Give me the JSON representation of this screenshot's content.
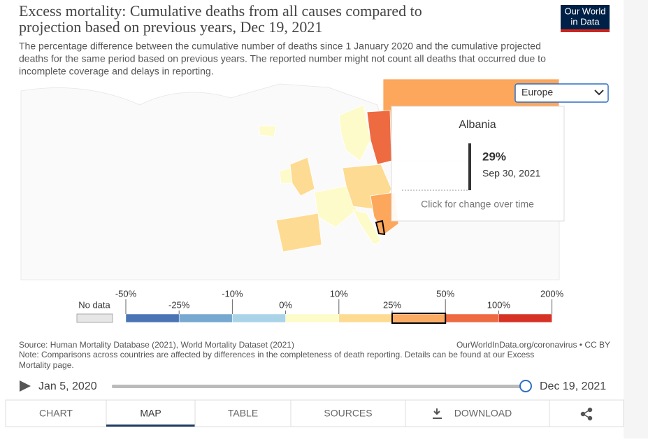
{
  "header": {
    "title_lines": [
      "Excess mortality: Cumulative deaths from all causes compared to",
      "projection based on previous years, Dec 19, 2021"
    ],
    "subtitle_lines": [
      "The percentage difference between the cumulative number of deaths since 1 January 2020 and the cumulative projected",
      "deaths for the same period based on previous years. The reported number might not count all deaths that occurred due to",
      "incomplete coverage and delays in reporting."
    ],
    "logo": [
      "Our World",
      "in Data"
    ]
  },
  "region_select": "Europe",
  "tooltip": {
    "country": "Albania",
    "value": "29%",
    "date": "Sep 30, 2021",
    "hint": "Click for change over time"
  },
  "legend": {
    "no_data": "No data",
    "no_data_color": "#e6e6e6",
    "bounds": [
      "-50%",
      "-25%",
      "-10%",
      "0%",
      "10%",
      "25%",
      "50%",
      "100%",
      "200%"
    ],
    "colors": [
      "#4a74b4",
      "#77a8d0",
      "#a9d4e8",
      "#fdfbc9",
      "#fddb92",
      "#fcab63",
      "#ee6a40",
      "#d73226"
    ],
    "highlight": 5
  },
  "footer": {
    "source": "Source: Human Mortality Database (2021), World Mortality Dataset (2021)",
    "license": "OurWorldInData.org/coronavirus • CC BY",
    "note_lines": [
      "Note: Comparisons across countries are affected by differences in the completeness of death reporting. Details can be found at our Excess",
      "Mortality page."
    ]
  },
  "timeline": {
    "start": "Jan 5, 2020",
    "end": "Dec 19, 2021"
  },
  "tabs": [
    "CHART",
    "MAP",
    "TABLE",
    "SOURCES",
    "DOWNLOAD"
  ],
  "active_tab": 1
}
